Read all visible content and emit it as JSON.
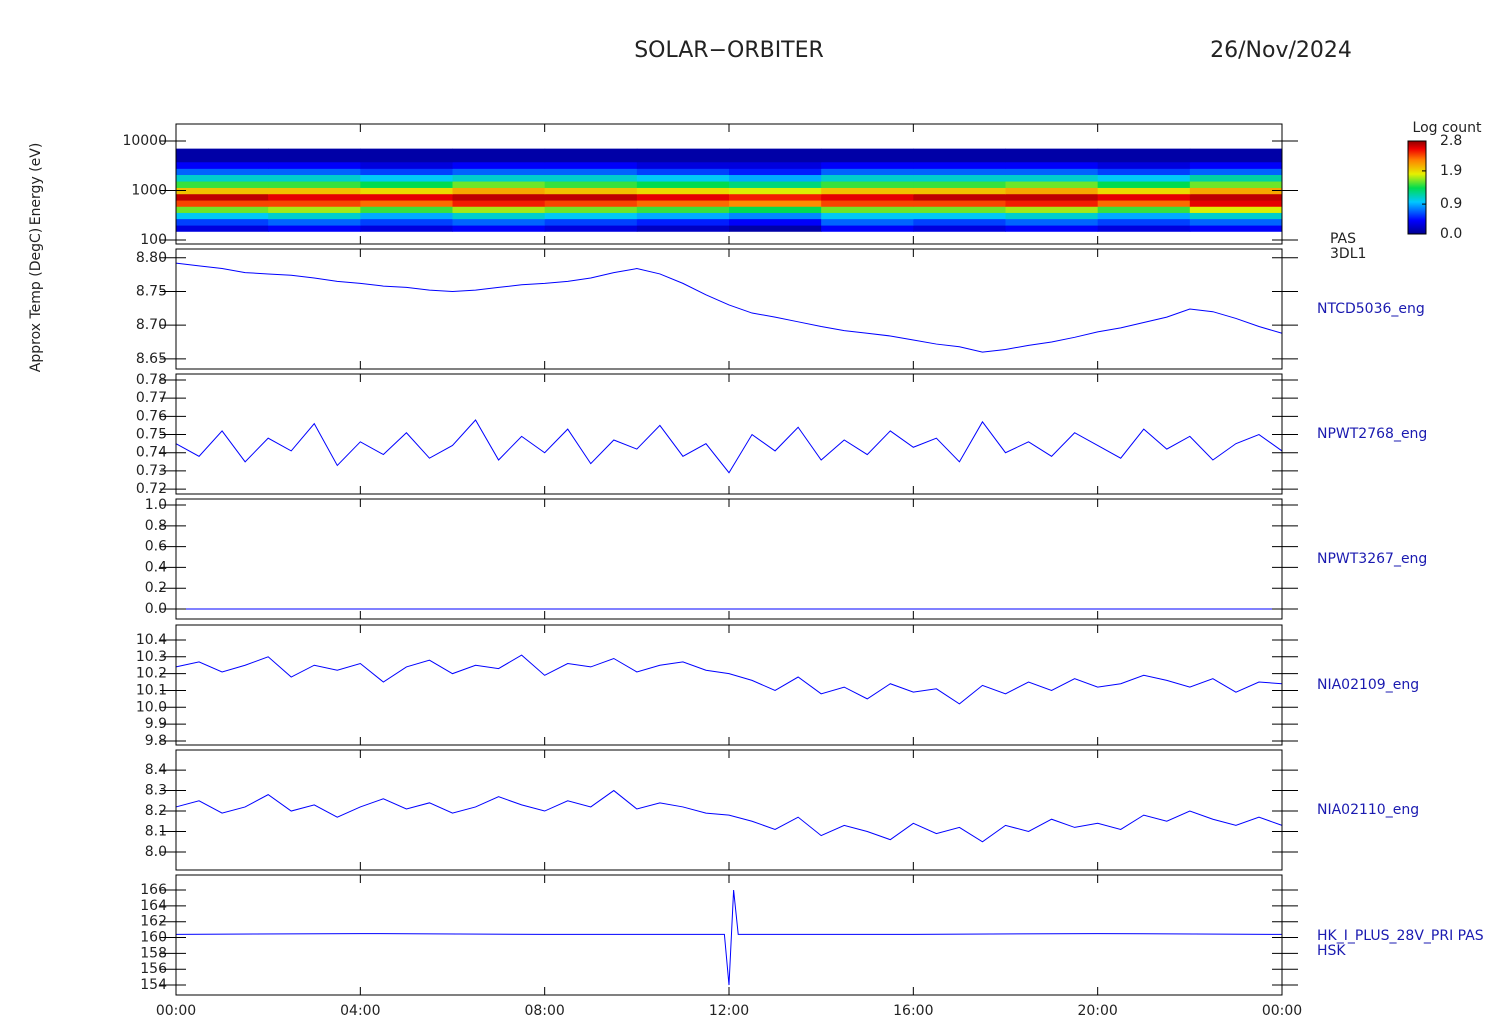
{
  "header": {
    "title": "SOLAR−ORBITER",
    "date": "26/Nov/2024"
  },
  "x_axis": {
    "xlim": [
      0,
      24
    ],
    "xticks": [
      {
        "value": 0,
        "label": "00:00"
      },
      {
        "value": 4,
        "label": "04:00"
      },
      {
        "value": 8,
        "label": "08:00"
      },
      {
        "value": 12,
        "label": "12:00"
      },
      {
        "value": 16,
        "label": "16:00"
      },
      {
        "value": 20,
        "label": "20:00"
      },
      {
        "value": 24,
        "label": "00:00"
      }
    ]
  },
  "chart_data": [
    {
      "type": "heatmap",
      "ylabel": "Energy (eV)",
      "label": [
        "PAS",
        "3DL1"
      ],
      "ylog": true,
      "ylim": [
        83,
        22000
      ],
      "yticks": [
        100,
        1000,
        10000
      ],
      "xbins": [
        0,
        2,
        4,
        6,
        8,
        10,
        12,
        14,
        16,
        18,
        20,
        22,
        24
      ],
      "ybins": [
        150,
        200,
        270,
        360,
        480,
        640,
        860,
        1150,
        1550,
        2100,
        2800,
        3800,
        7000
      ],
      "z": [
        [
          0.3,
          0.4,
          0.3,
          0.4,
          0.3,
          0.2,
          0.1,
          0.4,
          0.3,
          0.4,
          0.3,
          0.4
        ],
        [
          0.6,
          0.7,
          0.6,
          0.7,
          0.6,
          0.5,
          0.4,
          0.7,
          0.6,
          0.7,
          0.6,
          0.7
        ],
        [
          1.0,
          1.1,
          0.9,
          1.1,
          1.0,
          0.9,
          0.8,
          1.0,
          1.0,
          1.1,
          0.9,
          1.1
        ],
        [
          1.6,
          1.7,
          1.5,
          1.7,
          1.6,
          1.5,
          1.4,
          1.6,
          1.6,
          1.7,
          1.5,
          1.8
        ],
        [
          2.4,
          2.4,
          2.3,
          2.5,
          2.4,
          2.3,
          2.2,
          2.4,
          2.4,
          2.5,
          2.3,
          2.6
        ],
        [
          2.7,
          2.6,
          2.6,
          2.7,
          2.7,
          2.6,
          2.5,
          2.6,
          2.7,
          2.7,
          2.6,
          2.7
        ],
        [
          2.0,
          2.0,
          1.9,
          2.1,
          2.0,
          1.9,
          1.8,
          2.0,
          2.0,
          2.1,
          1.9,
          2.1
        ],
        [
          1.5,
          1.5,
          1.4,
          1.6,
          1.5,
          1.4,
          1.3,
          1.5,
          1.5,
          1.6,
          1.4,
          1.6
        ],
        [
          1.1,
          1.1,
          1.0,
          1.1,
          1.1,
          1.0,
          0.9,
          1.1,
          1.1,
          1.1,
          1.0,
          1.2
        ],
        [
          0.7,
          0.7,
          0.6,
          0.7,
          0.7,
          0.6,
          0.5,
          0.7,
          0.7,
          0.7,
          0.6,
          0.7
        ],
        [
          0.4,
          0.4,
          0.3,
          0.4,
          0.4,
          0.3,
          0.3,
          0.4,
          0.4,
          0.4,
          0.3,
          0.4
        ],
        [
          0.1,
          0.1,
          0.1,
          0.1,
          0.1,
          0.1,
          0.1,
          0.1,
          0.1,
          0.1,
          0.1,
          0.1
        ]
      ],
      "colormap": "rainbow",
      "colorbar": {
        "title": "Log count",
        "zlim": [
          0,
          2.8
        ],
        "ticks": [
          {
            "value": 0,
            "label": "0.0"
          },
          0.9,
          1.9,
          2.8
        ]
      }
    },
    {
      "type": "line",
      "ylabel": "Approx Temp (DegC)",
      "label": [
        "NTCD5036_eng"
      ],
      "color": "#0000ff",
      "ylim": [
        8.635,
        8.813
      ],
      "yticks": [
        {
          "value": 8.8,
          "label": "8.80"
        },
        8.75,
        {
          "value": 8.7,
          "label": "8.70"
        },
        8.65
      ],
      "x": [
        0,
        0.5,
        1,
        1.5,
        2,
        2.5,
        3,
        3.5,
        4,
        4.5,
        5,
        5.5,
        6,
        6.5,
        7,
        7.5,
        8,
        8.5,
        9,
        9.5,
        10,
        10.5,
        11,
        11.5,
        12,
        12.5,
        13,
        13.5,
        14,
        14.5,
        15,
        15.5,
        16,
        16.5,
        17,
        17.5,
        18,
        18.5,
        19,
        19.5,
        20,
        20.5,
        21,
        21.5,
        22,
        22.5,
        23,
        23.5,
        24
      ],
      "values": [
        8.792,
        8.788,
        8.784,
        8.778,
        8.776,
        8.774,
        8.77,
        8.765,
        8.762,
        8.758,
        8.756,
        8.752,
        8.75,
        8.752,
        8.756,
        8.76,
        8.762,
        8.765,
        8.77,
        8.778,
        8.784,
        8.776,
        8.762,
        8.745,
        8.73,
        8.718,
        8.712,
        8.705,
        8.698,
        8.692,
        8.688,
        8.684,
        8.678,
        8.672,
        8.668,
        8.66,
        8.664,
        8.67,
        8.675,
        8.682,
        8.69,
        8.696,
        8.704,
        8.712,
        8.724,
        8.72,
        8.71,
        8.698,
        8.688
      ]
    },
    {
      "type": "line",
      "label": [
        "NPWT2768_eng"
      ],
      "color": "#0000ff",
      "ylim": [
        0.7173,
        0.7833
      ],
      "yticks": [
        0.72,
        0.73,
        0.74,
        0.75,
        0.76,
        0.77,
        0.78
      ],
      "x": [
        0,
        0.5,
        1,
        1.5,
        2,
        2.5,
        3,
        3.5,
        4,
        4.5,
        5,
        5.5,
        6,
        6.5,
        7,
        7.5,
        8,
        8.5,
        9,
        9.5,
        10,
        10.5,
        11,
        11.5,
        12,
        12.5,
        13,
        13.5,
        14,
        14.5,
        15,
        15.5,
        16,
        16.5,
        17,
        17.5,
        18,
        18.5,
        19,
        19.5,
        20,
        20.5,
        21,
        21.5,
        22,
        22.5,
        23,
        23.5,
        24
      ],
      "values": [
        0.745,
        0.738,
        0.752,
        0.735,
        0.748,
        0.741,
        0.756,
        0.733,
        0.746,
        0.739,
        0.751,
        0.737,
        0.744,
        0.758,
        0.736,
        0.749,
        0.74,
        0.753,
        0.734,
        0.747,
        0.742,
        0.755,
        0.738,
        0.745,
        0.729,
        0.75,
        0.741,
        0.754,
        0.736,
        0.747,
        0.739,
        0.752,
        0.743,
        0.748,
        0.735,
        0.757,
        0.74,
        0.746,
        0.738,
        0.751,
        0.744,
        0.737,
        0.753,
        0.742,
        0.749,
        0.736,
        0.745,
        0.75,
        0.741
      ]
    },
    {
      "type": "line",
      "label": [
        "NPWT3267_eng"
      ],
      "color": "#0000ff",
      "ylim": [
        -0.096,
        1.058
      ],
      "yticks": [
        {
          "value": 0,
          "label": "0.0"
        },
        0.2,
        0.4,
        0.6,
        0.8,
        {
          "value": 1,
          "label": "1.0"
        }
      ],
      "x": [
        0,
        24
      ],
      "values": [
        0,
        0
      ]
    },
    {
      "type": "line",
      "label": [
        "NIA02109_eng"
      ],
      "color": "#0000ff",
      "ylim": [
        9.776,
        10.489
      ],
      "yticks": [
        9.8,
        9.9,
        {
          "value": 10,
          "label": "10.0"
        },
        10.1,
        10.2,
        10.3,
        10.4
      ],
      "x": [
        0,
        0.5,
        1,
        1.5,
        2,
        2.5,
        3,
        3.5,
        4,
        4.5,
        5,
        5.5,
        6,
        6.5,
        7,
        7.5,
        8,
        8.5,
        9,
        9.5,
        10,
        10.5,
        11,
        11.5,
        12,
        12.5,
        13,
        13.5,
        14,
        14.5,
        15,
        15.5,
        16,
        16.5,
        17,
        17.5,
        18,
        18.5,
        19,
        19.5,
        20,
        20.5,
        21,
        21.5,
        22,
        22.5,
        23,
        23.5,
        24
      ],
      "values": [
        10.24,
        10.27,
        10.21,
        10.25,
        10.3,
        10.18,
        10.25,
        10.22,
        10.26,
        10.15,
        10.24,
        10.28,
        10.2,
        10.25,
        10.23,
        10.31,
        10.19,
        10.26,
        10.24,
        10.29,
        10.21,
        10.25,
        10.27,
        10.22,
        10.2,
        10.16,
        10.1,
        10.18,
        10.08,
        10.12,
        10.05,
        10.14,
        10.09,
        10.11,
        10.02,
        10.13,
        10.08,
        10.15,
        10.1,
        10.17,
        10.12,
        10.14,
        10.19,
        10.16,
        10.12,
        10.17,
        10.09,
        10.15,
        10.14
      ]
    },
    {
      "type": "line",
      "label": [
        "NIA02110_eng"
      ],
      "color": "#0000ff",
      "ylim": [
        7.912,
        8.498
      ],
      "yticks": [
        {
          "value": 8,
          "label": "8.0"
        },
        8.1,
        8.2,
        8.3,
        8.4
      ],
      "x": [
        0,
        0.5,
        1,
        1.5,
        2,
        2.5,
        3,
        3.5,
        4,
        4.5,
        5,
        5.5,
        6,
        6.5,
        7,
        7.5,
        8,
        8.5,
        9,
        9.5,
        10,
        10.5,
        11,
        11.5,
        12,
        12.5,
        13,
        13.5,
        14,
        14.5,
        15,
        15.5,
        16,
        16.5,
        17,
        17.5,
        18,
        18.5,
        19,
        19.5,
        20,
        20.5,
        21,
        21.5,
        22,
        22.5,
        23,
        23.5,
        24
      ],
      "values": [
        8.22,
        8.25,
        8.19,
        8.22,
        8.28,
        8.2,
        8.23,
        8.17,
        8.22,
        8.26,
        8.21,
        8.24,
        8.19,
        8.22,
        8.27,
        8.23,
        8.2,
        8.25,
        8.22,
        8.3,
        8.21,
        8.24,
        8.22,
        8.19,
        8.18,
        8.15,
        8.11,
        8.17,
        8.08,
        8.13,
        8.1,
        8.06,
        8.14,
        8.09,
        8.12,
        8.05,
        8.13,
        8.1,
        8.16,
        8.12,
        8.14,
        8.11,
        8.18,
        8.15,
        8.2,
        8.16,
        8.13,
        8.17,
        8.13
      ]
    },
    {
      "type": "line",
      "label": [
        "HK_I_PLUS_28V_PRI PAS",
        "HSK"
      ],
      "color": "#0000ff",
      "ylim": [
        152.74,
        167.9
      ],
      "yticks": [
        154,
        156,
        158,
        160,
        162,
        164,
        166
      ],
      "x": [
        0,
        4,
        8,
        11.9,
        12.0,
        12.1,
        12.2,
        16,
        20,
        24
      ],
      "values": [
        160.4,
        160.5,
        160.4,
        160.4,
        154,
        166,
        160.4,
        160.4,
        160.5,
        160.4
      ]
    }
  ]
}
